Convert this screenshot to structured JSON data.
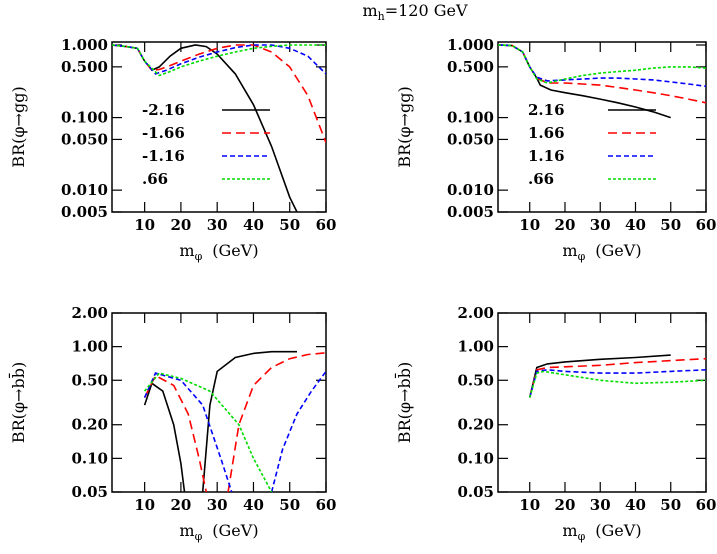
{
  "title": {
    "main": "m",
    "sub": "h",
    "rest": "=120 GeV"
  },
  "chart_data": [
    {
      "type": "line",
      "log_y": true,
      "ylabel": "BR(φ→gg)",
      "xlabel": {
        "main": "m",
        "sub": "φ",
        "rest": "(GeV)"
      },
      "xlim": [
        1,
        60
      ],
      "xticks": [
        10,
        20,
        30,
        40,
        50,
        60
      ],
      "ylim": [
        0.005,
        1.1
      ],
      "yticks": [
        {
          "value": 1,
          "label": "1.000"
        },
        {
          "value": 0.5,
          "label": "0.500"
        },
        {
          "value": 0.1,
          "label": "0.100"
        },
        {
          "value": 0.05,
          "label": "0.050"
        },
        {
          "value": 0.01,
          "label": "0.010"
        },
        {
          "value": 0.005,
          "label": "0.005"
        }
      ],
      "series": [
        {
          "name": "-2.16",
          "color": "#000000",
          "linestyle": "solid",
          "x": [
            1,
            5,
            8,
            10,
            12,
            14,
            17,
            20,
            24,
            27,
            30,
            35,
            40,
            45,
            50,
            52
          ],
          "values": [
            1,
            0.95,
            0.9,
            0.6,
            0.45,
            0.5,
            0.7,
            0.9,
            1,
            0.95,
            0.75,
            0.4,
            0.15,
            0.04,
            0.008,
            0.005
          ]
        },
        {
          "name": "-1.66",
          "color": "#ff0000",
          "linestyle": "dashed",
          "x": [
            1,
            5,
            8,
            10,
            12,
            14,
            17,
            20,
            25,
            30,
            35,
            40,
            45,
            50,
            55,
            60
          ],
          "values": [
            1,
            0.95,
            0.9,
            0.6,
            0.45,
            0.46,
            0.52,
            0.6,
            0.75,
            0.9,
            1,
            1,
            0.8,
            0.5,
            0.2,
            0.045
          ]
        },
        {
          "name": "-1.16",
          "color": "#0000ff",
          "linestyle": "dashdot",
          "x": [
            1,
            5,
            8,
            10,
            13,
            16,
            20,
            25,
            30,
            35,
            40,
            45,
            50,
            55,
            60
          ],
          "values": [
            1,
            0.95,
            0.9,
            0.6,
            0.4,
            0.45,
            0.55,
            0.68,
            0.8,
            0.92,
            1,
            1,
            0.9,
            0.7,
            0.4
          ]
        },
        {
          "name": ".66",
          "color": "#00dd00",
          "linestyle": "dotted",
          "x": [
            1,
            5,
            8,
            10,
            14,
            17,
            20,
            25,
            30,
            35,
            40,
            45,
            50,
            55,
            60
          ],
          "values": [
            1,
            0.95,
            0.9,
            0.6,
            0.38,
            0.43,
            0.5,
            0.6,
            0.7,
            0.8,
            0.9,
            0.96,
            1,
            1,
            1
          ]
        }
      ]
    },
    {
      "type": "line",
      "log_y": true,
      "ylabel": "BR(φ→gg)",
      "xlabel": {
        "main": "m",
        "sub": "φ",
        "rest": "(GeV)"
      },
      "xlim": [
        1,
        60
      ],
      "xticks": [
        10,
        20,
        30,
        40,
        50,
        60
      ],
      "ylim": [
        0.005,
        1.1
      ],
      "yticks": [
        {
          "value": 1,
          "label": "1.000"
        },
        {
          "value": 0.5,
          "label": "0.500"
        },
        {
          "value": 0.1,
          "label": "0.100"
        },
        {
          "value": 0.05,
          "label": "0.050"
        },
        {
          "value": 0.01,
          "label": "0.010"
        },
        {
          "value": 0.005,
          "label": "0.005"
        }
      ],
      "series": [
        {
          "name": "2.16",
          "color": "#000000",
          "linestyle": "solid",
          "x": [
            1,
            5,
            8,
            10,
            12,
            13,
            16,
            20,
            25,
            30,
            35,
            40,
            45,
            50
          ],
          "values": [
            1,
            0.98,
            0.8,
            0.5,
            0.35,
            0.28,
            0.24,
            0.22,
            0.2,
            0.18,
            0.16,
            0.14,
            0.12,
            0.1
          ]
        },
        {
          "name": "1.66",
          "color": "#ff0000",
          "linestyle": "dashed",
          "x": [
            1,
            5,
            8,
            10,
            12,
            15,
            20,
            25,
            30,
            35,
            40,
            45,
            50,
            55,
            60
          ],
          "values": [
            1,
            0.98,
            0.8,
            0.5,
            0.35,
            0.3,
            0.3,
            0.29,
            0.28,
            0.26,
            0.24,
            0.22,
            0.2,
            0.18,
            0.16
          ]
        },
        {
          "name": "1.16",
          "color": "#0000ff",
          "linestyle": "dashdot",
          "x": [
            1,
            5,
            8,
            10,
            12,
            15,
            20,
            25,
            30,
            35,
            40,
            45,
            50,
            55,
            60
          ],
          "values": [
            1,
            0.98,
            0.8,
            0.5,
            0.36,
            0.32,
            0.33,
            0.34,
            0.35,
            0.35,
            0.34,
            0.33,
            0.31,
            0.29,
            0.27
          ]
        },
        {
          "name": ".66",
          "color": "#00dd00",
          "linestyle": "dotted",
          "x": [
            1,
            5,
            8,
            10,
            12,
            15,
            20,
            25,
            30,
            35,
            40,
            45,
            50,
            55,
            60
          ],
          "values": [
            1,
            0.98,
            0.8,
            0.5,
            0.34,
            0.3,
            0.34,
            0.38,
            0.41,
            0.43,
            0.45,
            0.48,
            0.5,
            0.5,
            0.48
          ]
        }
      ]
    },
    {
      "type": "line",
      "log_y": true,
      "ylabel": "BR(φ→bb̄)",
      "xlabel": {
        "main": "m",
        "sub": "φ",
        "rest": "(GeV)"
      },
      "xlim": [
        1,
        60
      ],
      "xticks": [
        10,
        20,
        30,
        40,
        50,
        60
      ],
      "ylim": [
        0.05,
        2
      ],
      "yticks": [
        {
          "value": 2,
          "label": "2.00"
        },
        {
          "value": 1,
          "label": "1.00"
        },
        {
          "value": 0.5,
          "label": "0.50"
        },
        {
          "value": 0.2,
          "label": "0.20"
        },
        {
          "value": 0.1,
          "label": "0.10"
        },
        {
          "value": 0.05,
          "label": "0.05"
        }
      ],
      "series": [
        {
          "color": "#000000",
          "linestyle": "solid",
          "x": [
            10,
            12,
            15,
            18,
            20,
            21,
            23,
            26,
            28,
            30,
            35,
            40,
            45,
            50,
            52
          ],
          "values": [
            0.3,
            0.47,
            0.4,
            0.2,
            0.09,
            0.05,
            null,
            0.05,
            0.3,
            0.6,
            0.8,
            0.87,
            0.9,
            0.9,
            0.9
          ]
        },
        {
          "color": "#ff0000",
          "linestyle": "dashed",
          "x": [
            10,
            13,
            18,
            22,
            25,
            27,
            30,
            33,
            36,
            40,
            45,
            50,
            55,
            60
          ],
          "values": [
            0.35,
            0.55,
            0.45,
            0.25,
            0.1,
            0.05,
            null,
            0.05,
            0.2,
            0.45,
            0.65,
            0.78,
            0.85,
            0.88
          ]
        },
        {
          "color": "#0000ff",
          "linestyle": "dashdot",
          "x": [
            10,
            13,
            20,
            26,
            31,
            34,
            40,
            45,
            48,
            52,
            56,
            60
          ],
          "values": [
            0.35,
            0.58,
            0.5,
            0.3,
            0.1,
            0.05,
            null,
            0.05,
            0.12,
            0.25,
            0.4,
            0.6
          ]
        },
        {
          "color": "#00dd00",
          "linestyle": "dotted",
          "x": [
            10,
            14,
            20,
            28,
            36,
            40,
            45
          ],
          "values": [
            0.4,
            0.58,
            0.52,
            0.4,
            0.2,
            0.1,
            0.05
          ]
        }
      ]
    },
    {
      "type": "line",
      "log_y": true,
      "ylabel": "BR(φ→bb̄)",
      "xlabel": {
        "main": "m",
        "sub": "φ",
        "rest": "(GeV)"
      },
      "xlim": [
        1,
        60
      ],
      "xticks": [
        10,
        20,
        30,
        40,
        50,
        60
      ],
      "ylim": [
        0.05,
        2
      ],
      "yticks": [
        {
          "value": 2,
          "label": "2.00"
        },
        {
          "value": 1,
          "label": "1.00"
        },
        {
          "value": 0.5,
          "label": "0.50"
        },
        {
          "value": 0.2,
          "label": "0.20"
        },
        {
          "value": 0.1,
          "label": "0.10"
        },
        {
          "value": 0.05,
          "label": "0.05"
        }
      ],
      "series": [
        {
          "color": "#000000",
          "linestyle": "solid",
          "x": [
            10,
            12,
            15,
            20,
            30,
            40,
            50
          ],
          "values": [
            0.35,
            0.65,
            0.7,
            0.73,
            0.77,
            0.8,
            0.84
          ]
        },
        {
          "color": "#ff0000",
          "linestyle": "dashed",
          "x": [
            10,
            12,
            15,
            20,
            30,
            40,
            50,
            60
          ],
          "values": [
            0.35,
            0.62,
            0.65,
            0.66,
            0.68,
            0.72,
            0.75,
            0.78
          ]
        },
        {
          "color": "#0000ff",
          "linestyle": "dashdot",
          "x": [
            10,
            12,
            15,
            20,
            30,
            40,
            50,
            60
          ],
          "values": [
            0.35,
            0.6,
            0.62,
            0.6,
            0.58,
            0.58,
            0.6,
            0.62
          ]
        },
        {
          "color": "#00dd00",
          "linestyle": "dotted",
          "x": [
            10,
            12,
            14,
            20,
            30,
            40,
            50,
            60
          ],
          "values": [
            0.35,
            0.58,
            0.6,
            0.56,
            0.5,
            0.47,
            0.48,
            0.5
          ]
        }
      ]
    }
  ]
}
